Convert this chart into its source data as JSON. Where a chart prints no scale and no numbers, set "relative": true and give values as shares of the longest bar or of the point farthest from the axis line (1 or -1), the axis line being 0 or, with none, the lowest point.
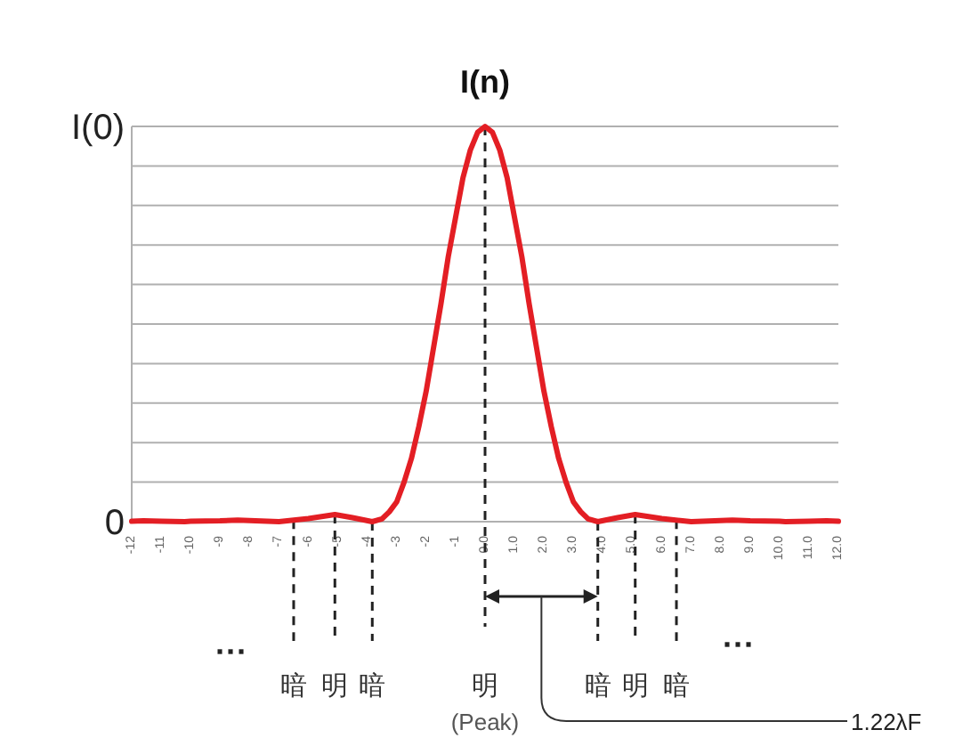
{
  "chart_data": {
    "type": "line",
    "title": "I(n)",
    "x": [
      -12,
      -11.6,
      -11,
      -10.2,
      -10,
      -9,
      -8.4,
      -8,
      -7,
      -6,
      -5.1,
      -4.5,
      -3.83,
      -3.5,
      -3.25,
      -3,
      -2.75,
      -2.5,
      -2.25,
      -2,
      -1.75,
      -1.5,
      -1.25,
      -1,
      -0.75,
      -0.5,
      -0.25,
      0,
      0.25,
      0.5,
      0.75,
      1,
      1.25,
      1.5,
      1.75,
      2,
      2.25,
      2.5,
      2.75,
      3,
      3.25,
      3.5,
      3.83,
      4.5,
      5.1,
      6,
      7,
      8,
      8.4,
      9,
      10,
      10.2,
      11,
      11.6,
      12
    ],
    "series": [
      {
        "color": "#e31e24",
        "values": [
          0.001,
          0.002,
          0.001,
          0,
          0.001,
          0.002,
          0.004,
          0.003,
          0,
          0.008,
          0.018,
          0.01,
          0,
          0.007,
          0.025,
          0.05,
          0.1,
          0.16,
          0.24,
          0.33,
          0.44,
          0.55,
          0.67,
          0.77,
          0.87,
          0.94,
          0.985,
          1,
          0.985,
          0.94,
          0.87,
          0.77,
          0.67,
          0.55,
          0.44,
          0.33,
          0.24,
          0.16,
          0.1,
          0.05,
          0.025,
          0.007,
          0,
          0.01,
          0.018,
          0.008,
          0,
          0.003,
          0.004,
          0.002,
          0.001,
          0,
          0.001,
          0.002,
          0.001
        ]
      }
    ],
    "relative": true,
    "xlim": [
      -12,
      12
    ],
    "xticks": [
      {
        "value": -12,
        "label": "-12"
      },
      {
        "value": -11,
        "label": "-11"
      },
      {
        "value": -10,
        "label": "-10"
      },
      {
        "value": -9,
        "label": "-9"
      },
      {
        "value": -8,
        "label": "-8"
      },
      {
        "value": -7,
        "label": "-7"
      },
      {
        "value": -6,
        "label": "-6"
      },
      {
        "value": -5,
        "label": "-5"
      },
      {
        "value": -4,
        "label": "-4"
      },
      {
        "value": -3,
        "label": "-3"
      },
      {
        "value": -2,
        "label": "-2"
      },
      {
        "value": -1,
        "label": "-1"
      },
      {
        "value": 0,
        "label": "0.0"
      },
      {
        "value": 1,
        "label": "1.0"
      },
      {
        "value": 2,
        "label": "2.0"
      },
      {
        "value": 3,
        "label": "3.0"
      },
      {
        "value": 4,
        "label": "4.0"
      },
      {
        "value": 5,
        "label": "5.0"
      },
      {
        "value": 6,
        "label": "6.0"
      },
      {
        "value": 7,
        "label": "7.0"
      },
      {
        "value": 8,
        "label": "8.0"
      },
      {
        "value": 9,
        "label": "9.0"
      },
      {
        "value": 10,
        "label": "10.0"
      },
      {
        "value": 11,
        "label": "11.0"
      },
      {
        "value": 12,
        "label": "12.0"
      }
    ],
    "grid": "y",
    "marker": "none",
    "line_style": "solid",
    "ref_lines": [
      {
        "axis": "x",
        "value": -6.5,
        "label": "暗",
        "line_style": "dashed"
      },
      {
        "axis": "x",
        "value": -5.1,
        "label": "明",
        "line_style": "dashed"
      },
      {
        "axis": "x",
        "value": -3.83,
        "label": "暗",
        "line_style": "dashed"
      },
      {
        "axis": "x",
        "value": 0,
        "label": "明",
        "line_style": "dashed"
      },
      {
        "axis": "x",
        "value": 3.83,
        "label": "暗",
        "line_style": "dashed"
      },
      {
        "axis": "x",
        "value": 5.1,
        "label": "明",
        "line_style": "dashed"
      },
      {
        "axis": "x",
        "value": 6.5,
        "label": "暗",
        "line_style": "dashed"
      }
    ],
    "annotations": [
      "···",
      "···",
      "(Peak)",
      "1.22λF",
      "I(0)",
      "0"
    ]
  }
}
